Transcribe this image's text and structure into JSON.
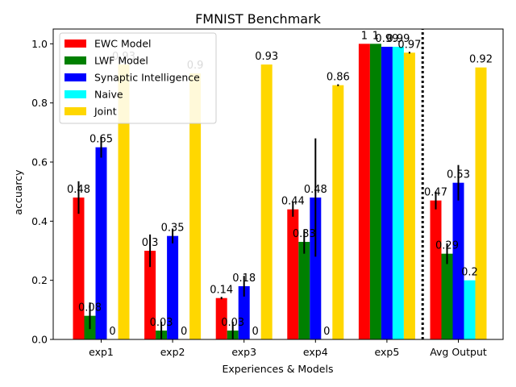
{
  "chart_data": {
    "type": "bar",
    "title": "FMNIST Benchmark",
    "xlabel": "Experiences & Models",
    "ylabel": "accuarcy",
    "categories": [
      "exp1",
      "exp2",
      "exp3",
      "exp4",
      "exp5",
      "Avg Output"
    ],
    "ylim": [
      0,
      1.05
    ],
    "yticks": [
      "0.0",
      "0.2",
      "0.4",
      "0.6",
      "0.8",
      "1.0"
    ],
    "ytick_values": [
      0,
      0.2,
      0.4,
      0.6,
      0.8,
      1.0
    ],
    "grid": false,
    "legend_position": "top-left",
    "separator": "dotted vertical line between exp5 and Avg Output",
    "series": [
      {
        "name": "EWC Model",
        "color": "#ff0000",
        "values": [
          0.48,
          0.3,
          0.14,
          0.44,
          1.0,
          0.47
        ],
        "labels": [
          "0.48",
          "0.3",
          "0.14",
          "0.44",
          "1",
          "0.47"
        ],
        "error": [
          0.055,
          0.055,
          0.004,
          0.025,
          0,
          0.03
        ]
      },
      {
        "name": "LWF Model",
        "color": "#008000",
        "values": [
          0.08,
          0.03,
          0.03,
          0.33,
          1.0,
          0.29
        ],
        "labels": [
          "0.08",
          "0.03",
          "0.03",
          "0.33",
          "1",
          "0.29"
        ],
        "error": [
          0.045,
          0.03,
          0.03,
          0.04,
          0,
          0.035
        ]
      },
      {
        "name": "Synaptic Intelligence",
        "color": "#0000ff",
        "values": [
          0.65,
          0.35,
          0.18,
          0.48,
          0.99,
          0.53
        ],
        "labels": [
          "0.65",
          "0.35",
          "0.18",
          "0.48",
          "0.99",
          "0.53"
        ],
        "error": [
          0.035,
          0.025,
          0.035,
          0.2,
          0,
          0.06
        ]
      },
      {
        "name": "Naive",
        "color": "#00ffff",
        "values": [
          0,
          0,
          0,
          0,
          0.99,
          0.2
        ],
        "labels": [
          "0",
          "0",
          "0",
          "0",
          "0.99",
          "0.2"
        ],
        "error": [
          0,
          0,
          0,
          0,
          0,
          0
        ]
      },
      {
        "name": "Joint",
        "color": "#ffd700",
        "values": [
          0.93,
          0.9,
          0.93,
          0.86,
          0.97,
          0.92
        ],
        "labels": [
          "0.93",
          "0.9",
          "0.93",
          "0.86",
          "0.97",
          "0.92"
        ],
        "error": [
          0,
          0,
          0,
          0.003,
          0.003,
          0
        ]
      }
    ]
  }
}
